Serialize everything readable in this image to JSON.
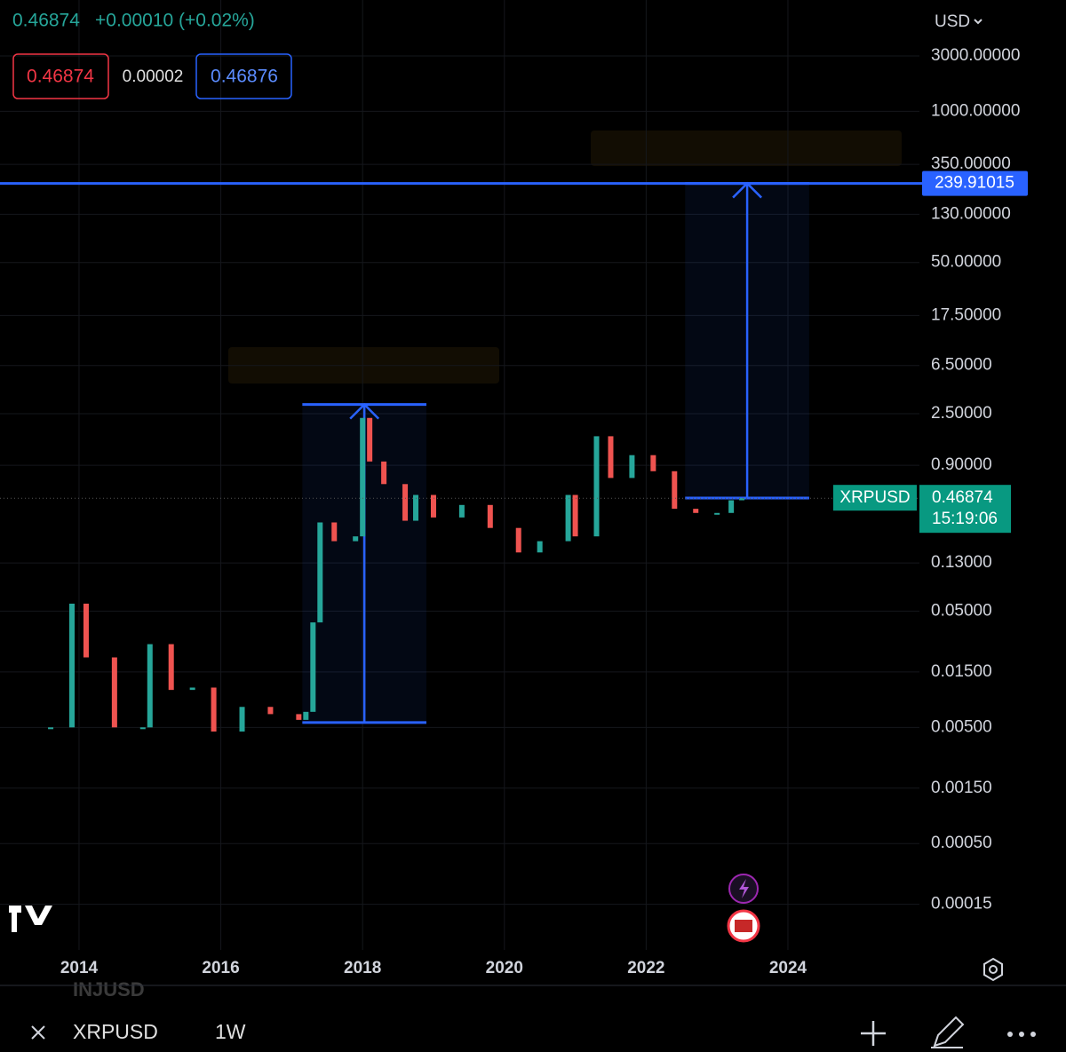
{
  "header": {
    "last": "0.46874",
    "change": "+0.00010 (+0.02%)",
    "bid": "0.46874",
    "spread": "0.00002",
    "ask": "0.46876",
    "currency": "USD"
  },
  "chart_data": {
    "type": "line",
    "log_scale": true,
    "grid": true,
    "x": [
      2013.6,
      2013.9,
      2014.1,
      2014.5,
      2014.9,
      2015.0,
      2015.3,
      2015.6,
      2015.9,
      2016.3,
      2016.7,
      2017.1,
      2017.2,
      2017.3,
      2017.4,
      2017.6,
      2017.9,
      2018.0,
      2018.1,
      2018.3,
      2018.6,
      2018.75,
      2019.0,
      2019.4,
      2019.8,
      2020.2,
      2020.5,
      2020.9,
      2021.0,
      2021.3,
      2021.5,
      2021.8,
      2022.1,
      2022.4,
      2022.7,
      2023.0,
      2023.2,
      2023.35
    ],
    "series": [
      {
        "name": "XRPUSD",
        "color": "#26a69a",
        "values": [
          0.005,
          0.058,
          0.02,
          0.005,
          0.005,
          0.026,
          0.0105,
          0.011,
          0.0046,
          0.0075,
          0.0065,
          0.0058,
          0.0068,
          0.04,
          0.29,
          0.2,
          0.22,
          2.3,
          0.97,
          0.62,
          0.3,
          0.5,
          0.32,
          0.41,
          0.26,
          0.16,
          0.2,
          0.5,
          0.22,
          1.6,
          0.7,
          1.1,
          0.8,
          0.38,
          0.35,
          0.35,
          0.45,
          0.46874
        ]
      }
    ],
    "xlim": [
      2012.885,
      2025.855
    ],
    "ylim": [
      6.08e-05,
      9080
    ],
    "xticks": [
      2014,
      2016,
      2018,
      2020,
      2022,
      2024
    ],
    "yticks": [
      {
        "value": 3000,
        "label": "3000.00000"
      },
      {
        "value": 1000,
        "label": "1000.00000"
      },
      {
        "value": 350,
        "label": "350.00000"
      },
      {
        "value": 130,
        "label": "130.00000"
      },
      {
        "value": 50,
        "label": "50.00000"
      },
      {
        "value": 17.5,
        "label": "17.50000"
      },
      {
        "value": 6.5,
        "label": "6.50000"
      },
      {
        "value": 2.5,
        "label": "2.50000"
      },
      {
        "value": 0.9,
        "label": "0.90000"
      },
      {
        "value": 0.13,
        "label": "0.13000"
      },
      {
        "value": 0.05,
        "label": "0.05000"
      },
      {
        "value": 0.015,
        "label": "0.01500"
      },
      {
        "value": 0.005,
        "label": "0.00500"
      },
      {
        "value": 0.0015,
        "label": "0.00150"
      },
      {
        "value": 0.0005,
        "label": "0.00050"
      },
      {
        "value": 0.00015,
        "label": "0.00015"
      }
    ],
    "level": {
      "value": 239.91015,
      "color": "#2962ff"
    },
    "current": {
      "symbol": "XRPUSD",
      "value": 0.46874,
      "countdown": "15:19:06"
    },
    "projections": [
      {
        "x": [
          2017.15,
          2018.9
        ],
        "values": [
          0.0055,
          3.0
        ]
      },
      {
        "x": [
          2022.55,
          2024.3
        ],
        "values": [
          0.47,
          239.91015
        ]
      }
    ]
  },
  "footer": {
    "symbol": "XRPUSD",
    "interval": "1W",
    "overlay": "INJUSD"
  }
}
